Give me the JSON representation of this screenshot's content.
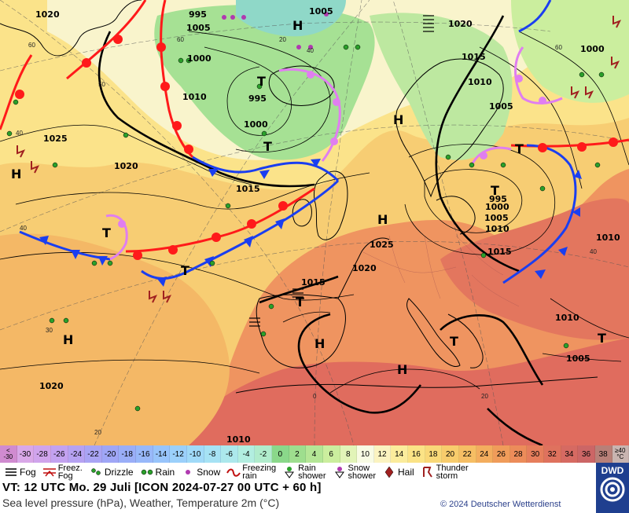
{
  "colors": {
    "cold_front": "#1a3ef0",
    "warm_front": "#ff1a1a",
    "occlusion": "#e07ef0",
    "isobar": "#000000",
    "ocean_warm": "#f6c86a",
    "land_hot": "#e26a60",
    "cool_green": "#8fdc8a"
  },
  "isobar_labels": [
    "1020",
    "995",
    "1005",
    "1000",
    "1005",
    "1010",
    "1025",
    "1020",
    "995",
    "1000",
    "1015",
    "1020",
    "1015",
    "1010",
    "1005",
    "995",
    "1000",
    "1005",
    "1010",
    "1015",
    "1010",
    "1025",
    "1020",
    "1015",
    "1010",
    "1005",
    "1020",
    "1000",
    "1010"
  ],
  "pressure_centers": {
    "highs": [
      "H",
      "H",
      "H",
      "H",
      "H",
      "H",
      "H"
    ],
    "lows": [
      "T",
      "T",
      "T",
      "T",
      "T",
      "T",
      "T",
      "T",
      "T"
    ]
  },
  "grid_labels": [
    "60",
    "60",
    "50",
    "40",
    "40",
    "30",
    "20",
    "0",
    "20",
    "60",
    "40",
    "40",
    "20"
  ],
  "temperature_scale": [
    {
      "label": "<\n-30",
      "color": "#d08bd0"
    },
    {
      "label": "-30",
      "color": "#d9a8e8"
    },
    {
      "label": "-28",
      "color": "#d0a4ec"
    },
    {
      "label": "-26",
      "color": "#c3a2f0"
    },
    {
      "label": "-24",
      "color": "#b6a2f2"
    },
    {
      "label": "-22",
      "color": "#a9a4f4"
    },
    {
      "label": "-20",
      "color": "#9fa6f6"
    },
    {
      "label": "-18",
      "color": "#9aaef8"
    },
    {
      "label": "-16",
      "color": "#98b8fa"
    },
    {
      "label": "-14",
      "color": "#98c4fb"
    },
    {
      "label": "-12",
      "color": "#9bd0fb"
    },
    {
      "label": "-10",
      "color": "#a0daf8"
    },
    {
      "label": "-8",
      "color": "#a6e2f4"
    },
    {
      "label": "-6",
      "color": "#ace8ec"
    },
    {
      "label": "-4",
      "color": "#b2eee0"
    },
    {
      "label": "-2",
      "color": "#b0eccc"
    },
    {
      "label": "0",
      "color": "#8ad88a"
    },
    {
      "label": "2",
      "color": "#9ede8e"
    },
    {
      "label": "4",
      "color": "#b4e696"
    },
    {
      "label": "6",
      "color": "#cbee9e"
    },
    {
      "label": "8",
      "color": "#e2f4b8"
    },
    {
      "label": "10",
      "color": "#f8fbe4"
    },
    {
      "label": "12",
      "color": "#fbf3c0"
    },
    {
      "label": "14",
      "color": "#fbec9c"
    },
    {
      "label": "16",
      "color": "#fbe386"
    },
    {
      "label": "18",
      "color": "#f9d878"
    },
    {
      "label": "20",
      "color": "#f8cc6c"
    },
    {
      "label": "22",
      "color": "#f6be64"
    },
    {
      "label": "24",
      "color": "#f3ad5e"
    },
    {
      "label": "26",
      "color": "#f09c5a"
    },
    {
      "label": "28",
      "color": "#ec8c5a"
    },
    {
      "label": "30",
      "color": "#e67e5c"
    },
    {
      "label": "32",
      "color": "#df725e"
    },
    {
      "label": "34",
      "color": "#d66a62"
    },
    {
      "label": "36",
      "color": "#cc6666"
    },
    {
      "label": "38",
      "color": "#b88078"
    },
    {
      "label": "≥40\n°C",
      "color": "#c8b4b0"
    }
  ],
  "legend": [
    {
      "label": "Fog",
      "icon": "fog-icon"
    },
    {
      "label": "Freez.\nFog",
      "icon": "freezing-fog-icon"
    },
    {
      "label": "Drizzle",
      "icon": "drizzle-icon"
    },
    {
      "label": "Rain",
      "icon": "rain-icon"
    },
    {
      "label": "Snow",
      "icon": "snow-icon"
    },
    {
      "label": "Freezing\nrain",
      "icon": "freezing-rain-icon"
    },
    {
      "label": "Rain\nshower",
      "icon": "rain-shower-icon"
    },
    {
      "label": "Snow\nshower",
      "icon": "snow-shower-icon"
    },
    {
      "label": "Hail",
      "icon": "hail-icon"
    },
    {
      "label": "Thunder\nstorm",
      "icon": "thunderstorm-icon"
    }
  ],
  "info": {
    "valid_time": "VT: 12 UTC Mo.   29 Juli [ICON 2024-07-27  00 UTC + 60 h]",
    "description": "Sea level pressure (hPa), Weather, Temperature 2m (°C)",
    "copyright": "© 2024 Deutscher Wetterdienst",
    "logo_text": "DWD"
  }
}
